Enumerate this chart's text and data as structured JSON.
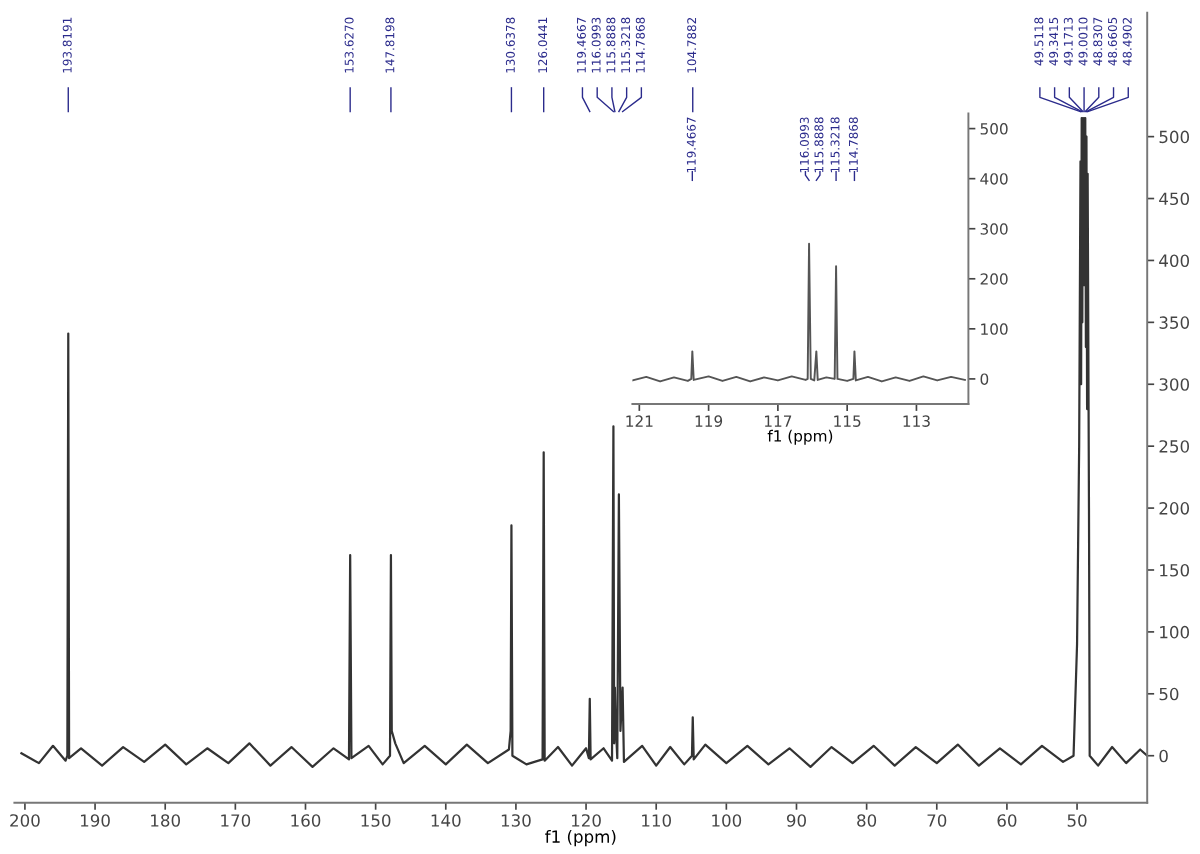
{
  "chart_data": [
    {
      "type": "line",
      "xlabel": "f1 (ppm)",
      "xlim": [
        201.5,
        40
      ],
      "ylim": [
        -38,
        600
      ],
      "xticks": [
        200,
        190,
        180,
        170,
        160,
        150,
        140,
        130,
        120,
        110,
        100,
        90,
        80,
        70,
        60,
        50
      ],
      "yticks": [
        0,
        50,
        100,
        150,
        200,
        250,
        300,
        350,
        400,
        450,
        500
      ],
      "grid": false,
      "line_style": "solid",
      "marker": "none",
      "series": [
        {
          "color": "#333333",
          "x": [
            200.5,
            198,
            196,
            194.2,
            193.95,
            193.82,
            193.7,
            192,
            189,
            186,
            183,
            180,
            177,
            174,
            171,
            168,
            165,
            162,
            159,
            156,
            153.8,
            153.63,
            153.45,
            151,
            149,
            147.95,
            147.82,
            147.7,
            147.2,
            146,
            143,
            140,
            137,
            134,
            131,
            130.75,
            130.64,
            130.5,
            128.5,
            126.2,
            126.04,
            125.9,
            124,
            122,
            120,
            119.6,
            119.47,
            119.35,
            117.5,
            116.3,
            116.1,
            115.99,
            115.89,
            115.8,
            115.55,
            115.32,
            115.1,
            114.79,
            114.6,
            112,
            110,
            108,
            106,
            104.9,
            104.79,
            104.65,
            103,
            100,
            97,
            94,
            91,
            88,
            85,
            82,
            79,
            76,
            73,
            70,
            67,
            64,
            61,
            58,
            55,
            52,
            50.5,
            50.0,
            49.7,
            49.51,
            49.42,
            49.34,
            49.25,
            49.17,
            49.08,
            49.0,
            48.91,
            48.83,
            48.74,
            48.66,
            48.57,
            48.49,
            48.3,
            48.2,
            47,
            45,
            43,
            41,
            40
          ],
          "values": [
            2,
            -6,
            8,
            -4,
            0,
            341,
            -2,
            6,
            -8,
            7,
            -5,
            9,
            -7,
            6,
            -6,
            10,
            -8,
            7,
            -9,
            6,
            -3,
            162,
            -2,
            8,
            -7,
            0,
            162,
            20,
            10,
            -6,
            8,
            -7,
            9,
            -6,
            5,
            20,
            186,
            0,
            -7,
            -3,
            245,
            -4,
            7,
            -8,
            6,
            -2,
            46,
            -3,
            6,
            -4,
            266,
            10,
            55,
            30,
            -2,
            211,
            20,
            55,
            -5,
            8,
            -8,
            7,
            -7,
            0,
            31,
            -3,
            9,
            -6,
            8,
            -7,
            6,
            -9,
            7,
            -6,
            8,
            -8,
            7,
            -6,
            9,
            -8,
            6,
            -7,
            8,
            -5,
            0,
            90,
            250,
            480,
            300,
            515,
            350,
            515,
            380,
            515,
            380,
            515,
            330,
            500,
            280,
            470,
            200,
            0,
            -8,
            7,
            -6,
            5,
            0
          ]
        }
      ],
      "annotations": [
        "193.8191",
        "153.6270",
        "147.8198",
        "130.6378",
        "126.0441",
        "119.4667",
        "116.0993",
        "115.8888",
        "115.3218",
        "114.7868",
        "104.7882",
        "49.5118",
        "49.3415",
        "49.1713",
        "49.0010",
        "48.8307",
        "48.6605",
        "48.4902"
      ]
    },
    {
      "type": "line",
      "xlabel": "f1 (ppm)",
      "xlim": [
        121.2,
        111.5
      ],
      "ylim": [
        -50,
        530
      ],
      "xticks": [
        121,
        119,
        117,
        115,
        113
      ],
      "yticks": [
        0,
        100,
        200,
        300,
        400,
        500
      ],
      "grid": false,
      "line_style": "solid",
      "marker": "none",
      "series": [
        {
          "color": "#555555",
          "x": [
            121.2,
            120.8,
            120.4,
            120.0,
            119.6,
            119.5,
            119.47,
            119.43,
            119.0,
            118.6,
            118.2,
            117.8,
            117.4,
            117.0,
            116.6,
            116.2,
            116.14,
            116.1,
            116.05,
            115.95,
            115.89,
            115.85,
            115.6,
            115.36,
            115.32,
            115.28,
            115.0,
            114.82,
            114.79,
            114.75,
            114.4,
            114.0,
            113.6,
            113.2,
            112.8,
            112.4,
            112.0,
            111.6
          ],
          "values": [
            -3,
            4,
            -5,
            3,
            -4,
            0,
            55,
            -2,
            5,
            -4,
            4,
            -5,
            3,
            -3,
            5,
            -2,
            0,
            270,
            0,
            -3,
            55,
            -2,
            3,
            0,
            225,
            0,
            -4,
            0,
            55,
            -3,
            4,
            -5,
            3,
            -4,
            5,
            -3,
            4,
            -2
          ]
        }
      ],
      "annotations": [
        "119.4667",
        "116.0993",
        "115.8888",
        "115.3218",
        "114.7868"
      ]
    }
  ]
}
